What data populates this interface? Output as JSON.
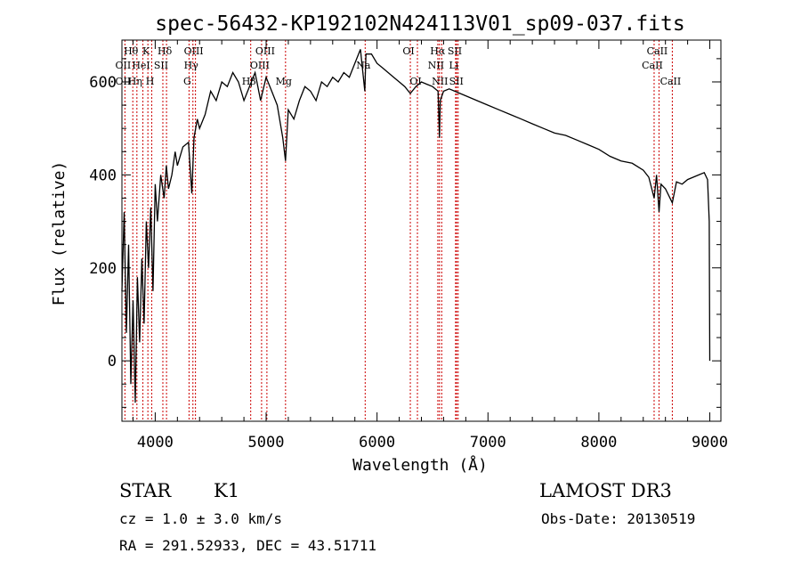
{
  "chart_data": {
    "type": "line",
    "title": "spec-56432-KP192102N424113V01_sp09-037.fits",
    "xlabel": "Wavelength (Å)",
    "ylabel": "Flux (relative)",
    "xlim": [
      3700,
      9100
    ],
    "ylim": [
      -130,
      690
    ],
    "xticks": [
      4000,
      5000,
      6000,
      7000,
      8000,
      9000
    ],
    "yticks": [
      0,
      200,
      400,
      600
    ],
    "grid": false,
    "spectrum": {
      "x": [
        3700,
        3720,
        3740,
        3760,
        3780,
        3800,
        3820,
        3840,
        3860,
        3880,
        3900,
        3920,
        3940,
        3960,
        3980,
        4000,
        4020,
        4050,
        4080,
        4100,
        4120,
        4150,
        4180,
        4200,
        4250,
        4300,
        4330,
        4350,
        4380,
        4400,
        4450,
        4500,
        4550,
        4600,
        4650,
        4700,
        4750,
        4800,
        4850,
        4900,
        4950,
        5000,
        5050,
        5100,
        5150,
        5175,
        5200,
        5250,
        5300,
        5350,
        5400,
        5450,
        5500,
        5550,
        5600,
        5650,
        5700,
        5750,
        5800,
        5850,
        5890,
        5900,
        5950,
        6000,
        6050,
        6100,
        6150,
        6200,
        6250,
        6300,
        6350,
        6400,
        6450,
        6500,
        6550,
        6563,
        6570,
        6600,
        6650,
        6700,
        6800,
        6900,
        7000,
        7100,
        7200,
        7300,
        7400,
        7500,
        7600,
        7700,
        7800,
        7900,
        8000,
        8100,
        8200,
        8300,
        8400,
        8450,
        8498,
        8520,
        8542,
        8560,
        8600,
        8662,
        8700,
        8750,
        8800,
        8850,
        8900,
        8950,
        8980,
        8995,
        9000
      ],
      "y": [
        150,
        320,
        60,
        250,
        -50,
        130,
        -90,
        180,
        40,
        220,
        80,
        300,
        200,
        330,
        150,
        380,
        300,
        400,
        350,
        420,
        370,
        400,
        450,
        420,
        460,
        470,
        360,
        480,
        520,
        500,
        530,
        580,
        560,
        600,
        590,
        620,
        600,
        560,
        590,
        620,
        560,
        610,
        580,
        550,
        480,
        430,
        540,
        520,
        560,
        590,
        580,
        560,
        600,
        590,
        610,
        600,
        620,
        610,
        640,
        670,
        580,
        660,
        660,
        640,
        630,
        620,
        610,
        600,
        590,
        575,
        590,
        600,
        595,
        590,
        580,
        480,
        560,
        580,
        585,
        580,
        570,
        560,
        550,
        540,
        530,
        520,
        510,
        500,
        490,
        485,
        475,
        465,
        455,
        440,
        430,
        425,
        410,
        395,
        350,
        400,
        320,
        380,
        370,
        340,
        385,
        380,
        390,
        395,
        400,
        405,
        390,
        300,
        0
      ],
      "color": "#000000"
    },
    "lines": [
      {
        "label": "OII",
        "x": 3727,
        "row": 2
      },
      {
        "label": "OII",
        "x": 3727,
        "row": 3
      },
      {
        "label": "Hθ",
        "x": 3798,
        "row": 1
      },
      {
        "label": "Hη",
        "x": 3835,
        "row": 3
      },
      {
        "label": "HeI",
        "x": 3889,
        "row": 2
      },
      {
        "label": "K",
        "x": 3934,
        "row": 1
      },
      {
        "label": "SII",
        "x": 4069,
        "row": 2
      },
      {
        "label": "H",
        "x": 3969,
        "row": 3
      },
      {
        "label": "Hδ",
        "x": 4102,
        "row": 1
      },
      {
        "label": "OIII",
        "x": 4363,
        "row": 1
      },
      {
        "label": "Hγ",
        "x": 4340,
        "row": 2
      },
      {
        "label": "G",
        "x": 4305,
        "row": 3
      },
      {
        "label": "Hβ",
        "x": 4861,
        "row": 3
      },
      {
        "label": "OIII",
        "x": 5007,
        "row": 1
      },
      {
        "label": "OIII",
        "x": 4959,
        "row": 2
      },
      {
        "label": "Mg",
        "x": 5175,
        "row": 3
      },
      {
        "label": "Na",
        "x": 5893,
        "row": 2
      },
      {
        "label": "OI",
        "x": 6300,
        "row": 1
      },
      {
        "label": "OI",
        "x": 6364,
        "row": 3
      },
      {
        "label": "Hα",
        "x": 6563,
        "row": 1
      },
      {
        "label": "NII",
        "x": 6548,
        "row": 2
      },
      {
        "label": "NII",
        "x": 6583,
        "row": 3
      },
      {
        "label": "SII",
        "x": 6717,
        "row": 1
      },
      {
        "label": "Li",
        "x": 6708,
        "row": 2
      },
      {
        "label": "SII",
        "x": 6731,
        "row": 3
      },
      {
        "label": "CaII",
        "x": 8542,
        "row": 1
      },
      {
        "label": "CaII",
        "x": 8498,
        "row": 2
      },
      {
        "label": "CaII",
        "x": 8662,
        "row": 3
      }
    ],
    "marker_color": "#cc0000"
  },
  "info": {
    "class": "STAR",
    "subclass": "K1",
    "survey": "LAMOST DR3",
    "cz": "cz = 1.0 ± 3.0 km/s",
    "obs_date": "Obs-Date: 20130519",
    "coords": "RA = 291.52933, DEC =  43.51711"
  }
}
